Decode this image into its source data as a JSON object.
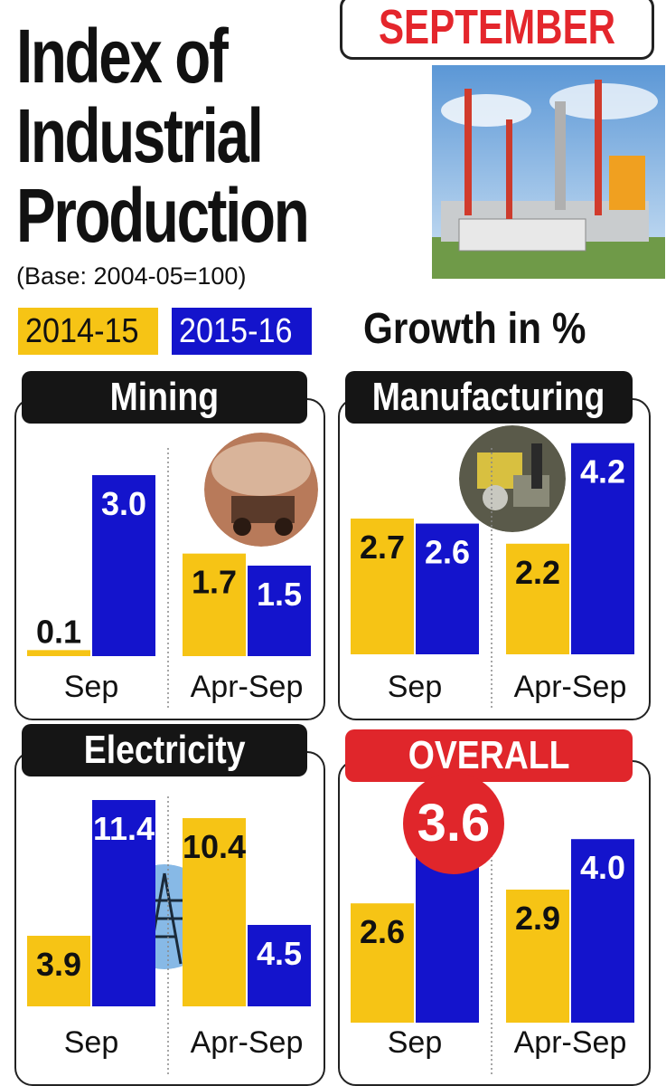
{
  "title": {
    "line1": "Index of",
    "line2": "Industrial",
    "line3": "Production"
  },
  "month": "SEPTEMBER",
  "base_note": "(Base: 2004-05=100)",
  "legend": {
    "y1": "2014-15",
    "y2": "2015-16"
  },
  "growth_label": "Growth in %",
  "colors": {
    "y1": "#f6c415",
    "y2": "#1414cc",
    "accent": "#e0262b"
  },
  "chart_data": [
    {
      "type": "bar",
      "title": "Mining",
      "categories": [
        "Sep",
        "Apr-Sep"
      ],
      "series": [
        {
          "name": "2014-15",
          "values": [
            0.1,
            1.7
          ]
        },
        {
          "name": "2015-16",
          "values": [
            3.0,
            1.5
          ]
        }
      ],
      "labels": [
        [
          "0.1",
          "1.7"
        ],
        [
          "3.0",
          "1.5"
        ]
      ],
      "ylim": [
        0,
        3.6
      ]
    },
    {
      "type": "bar",
      "title": "Manufacturing",
      "categories": [
        "Sep",
        "Apr-Sep"
      ],
      "series": [
        {
          "name": "2014-15",
          "values": [
            2.7,
            2.2
          ]
        },
        {
          "name": "2015-16",
          "values": [
            2.6,
            4.2
          ]
        }
      ],
      "labels": [
        [
          "2.7",
          "2.2"
        ],
        [
          "2.6",
          "4.2"
        ]
      ],
      "ylim": [
        0,
        4.5
      ]
    },
    {
      "type": "bar",
      "title": "Electricity",
      "categories": [
        "Sep",
        "Apr-Sep"
      ],
      "series": [
        {
          "name": "2014-15",
          "values": [
            3.9,
            10.4
          ]
        },
        {
          "name": "2015-16",
          "values": [
            11.4,
            4.5
          ]
        }
      ],
      "labels": [
        [
          "3.9",
          "10.4"
        ],
        [
          "11.4",
          "4.5"
        ]
      ],
      "ylim": [
        0,
        12
      ]
    },
    {
      "type": "bar",
      "title": "OVERALL",
      "categories": [
        "Sep",
        "Apr-Sep"
      ],
      "series": [
        {
          "name": "2014-15",
          "values": [
            2.6,
            2.9
          ]
        },
        {
          "name": "2015-16",
          "values": [
            3.6,
            4.0
          ]
        }
      ],
      "labels": [
        [
          "2.6",
          "2.9"
        ],
        [
          "3.6",
          "4.0"
        ]
      ],
      "ylim": [
        0,
        4.3
      ]
    }
  ]
}
